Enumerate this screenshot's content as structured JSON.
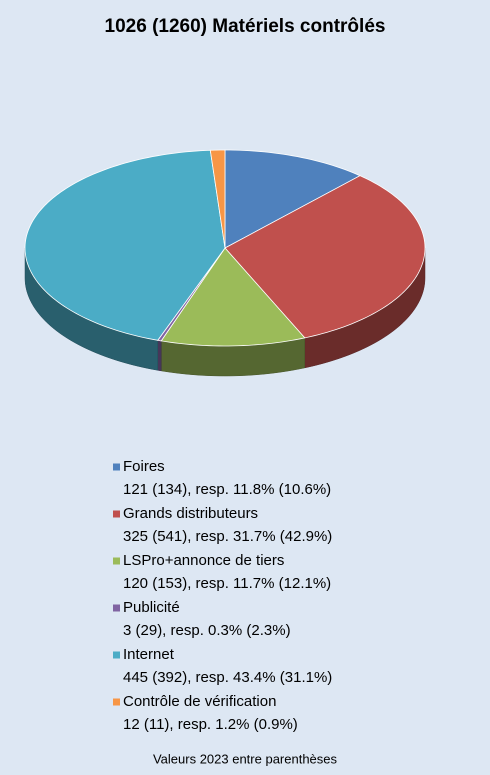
{
  "chart_data": {
    "type": "pie",
    "title": "1026 (1260) Matériels contrôlés",
    "categories": [
      "Foires",
      "Grands distributeurs",
      "LSPro+annonce de tiers",
      "Publicité",
      "Internet",
      "Contrôle de vérification"
    ],
    "values": [
      121,
      325,
      120,
      3,
      445,
      12
    ],
    "value_labels": [
      "121 (134), resp. 11.8% (10.6%)",
      "325 (541), resp. 31.7% (42.9%)",
      "120 (153), resp. 11.7% (12.1%)",
      "3 (29), resp. 0.3% (2.3%)",
      "445 (392), resp. 43.4% (31.1%)",
      "12 (11), resp. 1.2% (0.9%)"
    ],
    "colors": [
      "#4f81bd",
      "#c0504d",
      "#9bbb59",
      "#8064a2",
      "#4bacc6",
      "#f79646"
    ],
    "note": "Valeurs 2023 entre parenthèses"
  }
}
